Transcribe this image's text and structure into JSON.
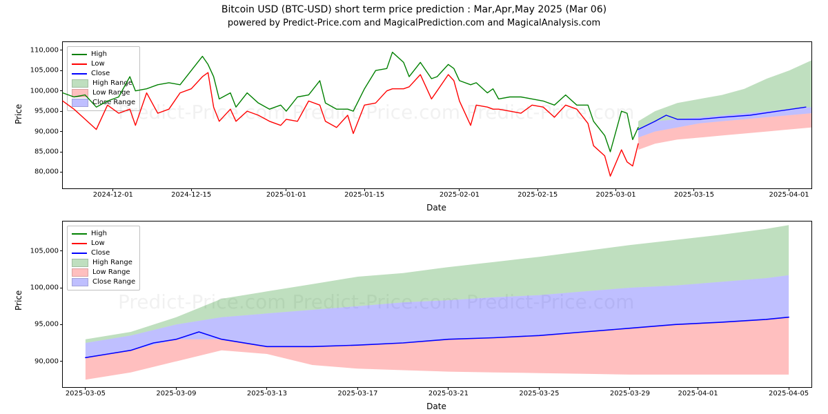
{
  "title": "Bitcoin USD (BTC-USD) short term price prediction : Mar,Apr,May 2025 (Mar 06)",
  "subtitle": "powered by Predict-Price.com and MagicalPrediction.com and MagicalAnalysis.com",
  "watermark": "Predict-Price.com     Predict-Price.com     Predict-Price.com",
  "legend": {
    "items": [
      {
        "label": "High",
        "type": "line",
        "color": "#008000"
      },
      {
        "label": "Low",
        "type": "line",
        "color": "#ff0000"
      },
      {
        "label": "Close",
        "type": "line",
        "color": "#0000ff"
      },
      {
        "label": "High Range",
        "type": "patch",
        "color": "rgba(0,128,0,0.25)"
      },
      {
        "label": "Low Range",
        "type": "patch",
        "color": "rgba(255,0,0,0.25)"
      },
      {
        "label": "Close Range",
        "type": "patch",
        "color": "rgba(0,0,255,0.25)"
      }
    ]
  },
  "chart1": {
    "type": "line+area",
    "ylabel": "Price",
    "xlabel": "Date",
    "ylim": [
      76000,
      112000
    ],
    "yticks": [
      80000,
      85000,
      90000,
      95000,
      100000,
      105000,
      110000
    ],
    "x_start": "2024-11-22",
    "x_end": "2025-04-05",
    "xticks": [
      "2024-12-01",
      "2024-12-15",
      "2025-01-01",
      "2025-01-15",
      "2025-02-01",
      "2025-02-15",
      "2025-03-01",
      "2025-03-15",
      "2025-04-01"
    ],
    "line_width": 1.4,
    "colors": {
      "high": "#008000",
      "low": "#ff0000",
      "close": "#0000ff",
      "high_range": "rgba(0,128,0,0.25)",
      "low_range": "rgba(255,0,0,0.25)",
      "close_range": "rgba(0,0,255,0.25)"
    },
    "high": [
      [
        "2024-11-22",
        99500
      ],
      [
        "2024-11-24",
        98500
      ],
      [
        "2024-11-26",
        99000
      ],
      [
        "2024-11-28",
        96000
      ],
      [
        "2024-11-30",
        97500
      ],
      [
        "2024-12-02",
        98500
      ],
      [
        "2024-12-04",
        103500
      ],
      [
        "2024-12-05",
        100000
      ],
      [
        "2024-12-07",
        100500
      ],
      [
        "2024-12-09",
        101500
      ],
      [
        "2024-12-11",
        102000
      ],
      [
        "2024-12-13",
        101500
      ],
      [
        "2024-12-15",
        105000
      ],
      [
        "2024-12-17",
        108500
      ],
      [
        "2024-12-18",
        106500
      ],
      [
        "2024-12-19",
        103500
      ],
      [
        "2024-12-20",
        98000
      ],
      [
        "2024-12-22",
        99500
      ],
      [
        "2024-12-23",
        96000
      ],
      [
        "2024-12-25",
        99500
      ],
      [
        "2024-12-27",
        97000
      ],
      [
        "2024-12-29",
        95500
      ],
      [
        "2024-12-31",
        96500
      ],
      [
        "2025-01-01",
        95000
      ],
      [
        "2025-01-03",
        98500
      ],
      [
        "2025-01-05",
        99000
      ],
      [
        "2025-01-07",
        102500
      ],
      [
        "2025-01-08",
        97000
      ],
      [
        "2025-01-10",
        95500
      ],
      [
        "2025-01-12",
        95500
      ],
      [
        "2025-01-13",
        95000
      ],
      [
        "2025-01-15",
        100500
      ],
      [
        "2025-01-17",
        105000
      ],
      [
        "2025-01-19",
        105500
      ],
      [
        "2025-01-20",
        109500
      ],
      [
        "2025-01-22",
        107000
      ],
      [
        "2025-01-23",
        103500
      ],
      [
        "2025-01-25",
        107000
      ],
      [
        "2025-01-27",
        103000
      ],
      [
        "2025-01-28",
        103500
      ],
      [
        "2025-01-30",
        106500
      ],
      [
        "2025-01-31",
        105500
      ],
      [
        "2025-02-01",
        102500
      ],
      [
        "2025-02-03",
        101500
      ],
      [
        "2025-02-04",
        102000
      ],
      [
        "2025-02-06",
        99500
      ],
      [
        "2025-02-07",
        100500
      ],
      [
        "2025-02-08",
        98000
      ],
      [
        "2025-02-10",
        98500
      ],
      [
        "2025-02-12",
        98500
      ],
      [
        "2025-02-14",
        98000
      ],
      [
        "2025-02-16",
        97500
      ],
      [
        "2025-02-18",
        96500
      ],
      [
        "2025-02-20",
        99000
      ],
      [
        "2025-02-22",
        96500
      ],
      [
        "2025-02-24",
        96500
      ],
      [
        "2025-02-25",
        92500
      ],
      [
        "2025-02-27",
        89000
      ],
      [
        "2025-02-28",
        85000
      ],
      [
        "2025-03-02",
        95000
      ],
      [
        "2025-03-03",
        94500
      ],
      [
        "2025-03-04",
        88000
      ],
      [
        "2025-03-05",
        91000
      ]
    ],
    "low": [
      [
        "2024-11-22",
        97500
      ],
      [
        "2024-11-24",
        95500
      ],
      [
        "2024-11-26",
        93000
      ],
      [
        "2024-11-28",
        90500
      ],
      [
        "2024-11-30",
        96500
      ],
      [
        "2024-12-02",
        94500
      ],
      [
        "2024-12-04",
        95500
      ],
      [
        "2024-12-05",
        91500
      ],
      [
        "2024-12-07",
        99500
      ],
      [
        "2024-12-09",
        94500
      ],
      [
        "2024-12-11",
        95500
      ],
      [
        "2024-12-13",
        99500
      ],
      [
        "2024-12-15",
        100500
      ],
      [
        "2024-12-17",
        103500
      ],
      [
        "2024-12-18",
        104500
      ],
      [
        "2024-12-19",
        96000
      ],
      [
        "2024-12-20",
        92500
      ],
      [
        "2024-12-22",
        95500
      ],
      [
        "2024-12-23",
        92500
      ],
      [
        "2024-12-25",
        95000
      ],
      [
        "2024-12-27",
        94000
      ],
      [
        "2024-12-29",
        92500
      ],
      [
        "2024-12-31",
        91500
      ],
      [
        "2025-01-01",
        93000
      ],
      [
        "2025-01-03",
        92500
      ],
      [
        "2025-01-05",
        97500
      ],
      [
        "2025-01-07",
        96500
      ],
      [
        "2025-01-08",
        92500
      ],
      [
        "2025-01-10",
        91000
      ],
      [
        "2025-01-12",
        94000
      ],
      [
        "2025-01-13",
        89500
      ],
      [
        "2025-01-15",
        96500
      ],
      [
        "2025-01-17",
        97000
      ],
      [
        "2025-01-19",
        100000
      ],
      [
        "2025-01-20",
        100500
      ],
      [
        "2025-01-22",
        100500
      ],
      [
        "2025-01-23",
        101000
      ],
      [
        "2025-01-25",
        104000
      ],
      [
        "2025-01-27",
        98000
      ],
      [
        "2025-01-28",
        100000
      ],
      [
        "2025-01-30",
        104000
      ],
      [
        "2025-01-31",
        102500
      ],
      [
        "2025-02-01",
        97500
      ],
      [
        "2025-02-03",
        91500
      ],
      [
        "2025-02-04",
        96500
      ],
      [
        "2025-02-06",
        96000
      ],
      [
        "2025-02-07",
        95500
      ],
      [
        "2025-02-08",
        95500
      ],
      [
        "2025-02-10",
        95000
      ],
      [
        "2025-02-12",
        94500
      ],
      [
        "2025-02-14",
        96500
      ],
      [
        "2025-02-16",
        96000
      ],
      [
        "2025-02-18",
        93500
      ],
      [
        "2025-02-20",
        96500
      ],
      [
        "2025-02-22",
        95500
      ],
      [
        "2025-02-24",
        92000
      ],
      [
        "2025-02-25",
        86500
      ],
      [
        "2025-02-27",
        84000
      ],
      [
        "2025-02-28",
        79000
      ],
      [
        "2025-03-02",
        85500
      ],
      [
        "2025-03-03",
        82500
      ],
      [
        "2025-03-04",
        81500
      ],
      [
        "2025-03-05",
        87000
      ]
    ],
    "close_pred": [
      [
        "2025-03-05",
        90500
      ],
      [
        "2025-03-08",
        92500
      ],
      [
        "2025-03-10",
        94000
      ],
      [
        "2025-03-12",
        93000
      ],
      [
        "2025-03-16",
        93000
      ],
      [
        "2025-03-20",
        93500
      ],
      [
        "2025-03-25",
        94000
      ],
      [
        "2025-03-30",
        95000
      ],
      [
        "2025-04-04",
        96000
      ]
    ],
    "high_range": {
      "start": "2025-03-05",
      "end": "2025-04-05",
      "y0": [
        92500,
        95000,
        97000,
        98000,
        99000,
        100500,
        103000,
        105000,
        107500
      ],
      "y1": [
        90500,
        92500,
        93000,
        93500,
        94000,
        94500,
        95000,
        95500,
        96000
      ]
    },
    "close_range": {
      "start": "2025-03-05",
      "end": "2025-04-05",
      "y0": [
        90500,
        92500,
        93000,
        93500,
        94000,
        94500,
        95000,
        95500,
        96000
      ],
      "y1": [
        88500,
        90000,
        91000,
        92000,
        92500,
        93000,
        93500,
        94000,
        94500
      ]
    },
    "low_range": {
      "start": "2025-03-05",
      "end": "2025-04-05",
      "y0": [
        88500,
        90000,
        91000,
        92000,
        92500,
        93000,
        93500,
        94000,
        94500
      ],
      "y1": [
        85500,
        87000,
        88000,
        88500,
        89000,
        89500,
        90000,
        90500,
        91000
      ]
    }
  },
  "chart2": {
    "type": "line+area",
    "ylabel": "Price",
    "xlabel": "Date",
    "ylim": [
      86500,
      109000
    ],
    "yticks": [
      90000,
      95000,
      100000,
      105000
    ],
    "x_start": "2025-03-04",
    "x_end": "2025-04-06",
    "xticks": [
      "2025-03-05",
      "2025-03-09",
      "2025-03-13",
      "2025-03-17",
      "2025-03-21",
      "2025-03-25",
      "2025-03-29",
      "2025-04-01",
      "2025-04-05"
    ],
    "line_width": 1.6,
    "colors": {
      "high": "#008000",
      "low": "#ff0000",
      "close": "#0000ff",
      "high_range": "rgba(0,128,0,0.25)",
      "low_range": "rgba(255,0,0,0.25)",
      "close_range": "rgba(0,0,255,0.25)"
    },
    "close": [
      [
        "2025-03-05",
        90500
      ],
      [
        "2025-03-06",
        91000
      ],
      [
        "2025-03-07",
        91500
      ],
      [
        "2025-03-08",
        92500
      ],
      [
        "2025-03-09",
        93000
      ],
      [
        "2025-03-10",
        94000
      ],
      [
        "2025-03-11",
        93000
      ],
      [
        "2025-03-13",
        92000
      ],
      [
        "2025-03-15",
        92000
      ],
      [
        "2025-03-17",
        92200
      ],
      [
        "2025-03-19",
        92500
      ],
      [
        "2025-03-21",
        93000
      ],
      [
        "2025-03-23",
        93200
      ],
      [
        "2025-03-25",
        93500
      ],
      [
        "2025-03-27",
        94000
      ],
      [
        "2025-03-29",
        94500
      ],
      [
        "2025-03-31",
        95000
      ],
      [
        "2025-04-02",
        95300
      ],
      [
        "2025-04-04",
        95700
      ],
      [
        "2025-04-05",
        96000
      ]
    ],
    "high_range_top": [
      [
        "2025-03-05",
        93000
      ],
      [
        "2025-03-07",
        94000
      ],
      [
        "2025-03-09",
        96000
      ],
      [
        "2025-03-11",
        98500
      ],
      [
        "2025-03-13",
        99500
      ],
      [
        "2025-03-15",
        100500
      ],
      [
        "2025-03-17",
        101500
      ],
      [
        "2025-03-19",
        102000
      ],
      [
        "2025-03-21",
        102800
      ],
      [
        "2025-03-23",
        103500
      ],
      [
        "2025-03-25",
        104200
      ],
      [
        "2025-03-27",
        105000
      ],
      [
        "2025-03-29",
        105800
      ],
      [
        "2025-03-31",
        106500
      ],
      [
        "2025-04-02",
        107200
      ],
      [
        "2025-04-04",
        108000
      ],
      [
        "2025-04-05",
        108500
      ]
    ],
    "close_range_top": [
      [
        "2025-03-05",
        92500
      ],
      [
        "2025-03-07",
        93500
      ],
      [
        "2025-03-09",
        95000
      ],
      [
        "2025-03-11",
        96000
      ],
      [
        "2025-03-13",
        96500
      ],
      [
        "2025-03-15",
        97000
      ],
      [
        "2025-03-17",
        97500
      ],
      [
        "2025-03-19",
        98000
      ],
      [
        "2025-03-21",
        98300
      ],
      [
        "2025-03-23",
        98700
      ],
      [
        "2025-03-25",
        99000
      ],
      [
        "2025-03-27",
        99500
      ],
      [
        "2025-03-29",
        100000
      ],
      [
        "2025-03-31",
        100300
      ],
      [
        "2025-04-02",
        100800
      ],
      [
        "2025-04-04",
        101300
      ],
      [
        "2025-04-05",
        101700
      ]
    ],
    "low_range_top": [
      [
        "2025-03-05",
        90500
      ],
      [
        "2025-03-07",
        91500
      ],
      [
        "2025-03-09",
        93000
      ],
      [
        "2025-03-11",
        93000
      ],
      [
        "2025-03-13",
        92000
      ],
      [
        "2025-03-15",
        92000
      ],
      [
        "2025-03-17",
        92200
      ],
      [
        "2025-03-19",
        92500
      ],
      [
        "2025-03-21",
        93000
      ],
      [
        "2025-03-23",
        93200
      ],
      [
        "2025-03-25",
        93500
      ],
      [
        "2025-03-27",
        94000
      ],
      [
        "2025-03-29",
        94500
      ],
      [
        "2025-03-31",
        95000
      ],
      [
        "2025-04-02",
        95300
      ],
      [
        "2025-04-04",
        95700
      ],
      [
        "2025-04-05",
        96000
      ]
    ],
    "low_range_bot": [
      [
        "2025-03-05",
        87500
      ],
      [
        "2025-03-07",
        88500
      ],
      [
        "2025-03-09",
        90000
      ],
      [
        "2025-03-11",
        91500
      ],
      [
        "2025-03-13",
        91000
      ],
      [
        "2025-03-15",
        89500
      ],
      [
        "2025-03-17",
        89000
      ],
      [
        "2025-03-19",
        88800
      ],
      [
        "2025-03-21",
        88600
      ],
      [
        "2025-03-23",
        88500
      ],
      [
        "2025-03-25",
        88400
      ],
      [
        "2025-03-27",
        88300
      ],
      [
        "2025-03-29",
        88200
      ],
      [
        "2025-03-31",
        88200
      ],
      [
        "2025-04-02",
        88200
      ],
      [
        "2025-04-04",
        88200
      ],
      [
        "2025-04-05",
        88200
      ]
    ]
  }
}
